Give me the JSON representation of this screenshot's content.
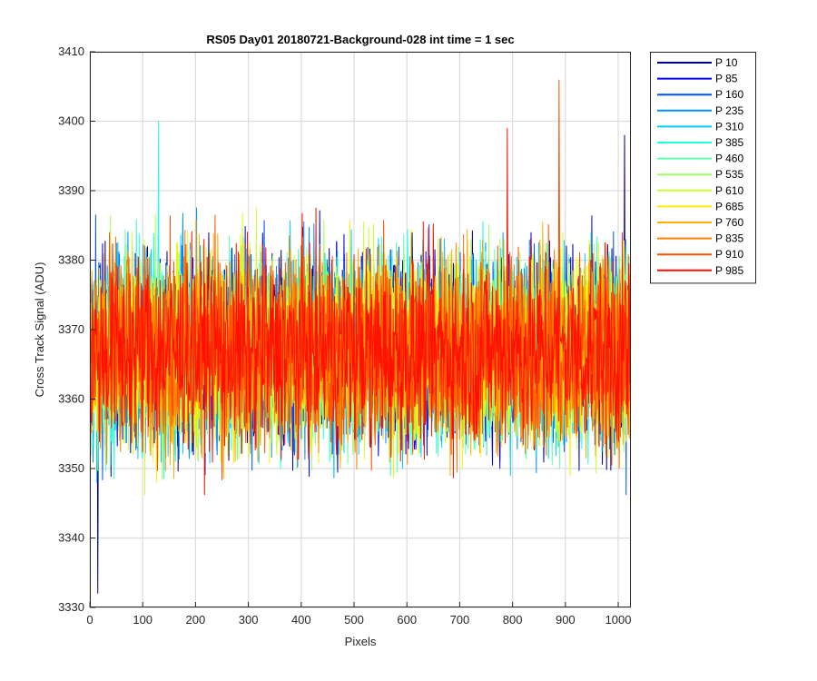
{
  "chart_data": {
    "type": "line",
    "title": "RS05 Day01 20180721-Background-028 int time = 1 sec",
    "xlabel": "Pixels",
    "ylabel": "Cross Track Signal (ADU)",
    "xlim": [
      0,
      1024
    ],
    "ylim": [
      3330,
      3410
    ],
    "xticks": [
      0,
      100,
      200,
      300,
      400,
      500,
      600,
      700,
      800,
      900,
      1000
    ],
    "yticks": [
      3330,
      3340,
      3350,
      3360,
      3370,
      3380,
      3390,
      3400,
      3410
    ],
    "grid": true,
    "legend_position": "outside-top-right",
    "series": [
      {
        "name": "P 10",
        "color": "#00008f",
        "mean": 3367,
        "spread": 7
      },
      {
        "name": "P 85",
        "color": "#0000ef",
        "mean": 3367,
        "spread": 7
      },
      {
        "name": "P 160",
        "color": "#0050ff",
        "mean": 3367,
        "spread": 7
      },
      {
        "name": "P 235",
        "color": "#0090ff",
        "mean": 3367,
        "spread": 7
      },
      {
        "name": "P 310",
        "color": "#00d0ff",
        "mean": 3367,
        "spread": 7
      },
      {
        "name": "P 385",
        "color": "#20ffdf",
        "mean": 3367,
        "spread": 7
      },
      {
        "name": "P 460",
        "color": "#60ffb0",
        "mean": 3367,
        "spread": 7
      },
      {
        "name": "P 535",
        "color": "#a0ff60",
        "mean": 3367,
        "spread": 7
      },
      {
        "name": "P 610",
        "color": "#d0ff30",
        "mean": 3367,
        "spread": 7
      },
      {
        "name": "P 685",
        "color": "#ffef00",
        "mean": 3367,
        "spread": 7
      },
      {
        "name": "P 760",
        "color": "#ffb000",
        "mean": 3367,
        "spread": 7
      },
      {
        "name": "P 835",
        "color": "#ff8000",
        "mean": 3367,
        "spread": 7
      },
      {
        "name": "P 910",
        "color": "#ff5000",
        "mean": 3367,
        "spread": 7
      },
      {
        "name": "P 985",
        "color": "#ff1000",
        "mean": 3367,
        "spread": 7
      }
    ],
    "annotated_peaks": [
      {
        "series": "P 910",
        "x": 888,
        "y": 3406
      },
      {
        "series": "P 385",
        "x": 130,
        "y": 3400
      },
      {
        "series": "P 10",
        "x": 1012,
        "y": 3398
      },
      {
        "series": "P 985",
        "x": 790,
        "y": 3399
      },
      {
        "series": "P 10",
        "x": 15,
        "y": 3332
      }
    ]
  }
}
